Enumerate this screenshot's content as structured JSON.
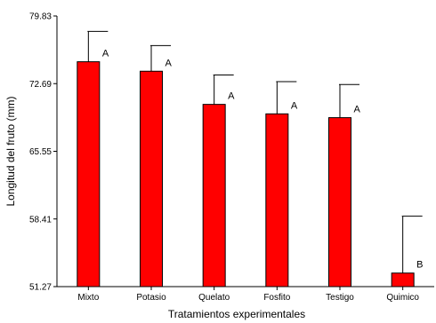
{
  "chart_data": {
    "type": "bar",
    "xlabel": "Tratamientos experimentales",
    "ylabel": "Longitud del fruto (mm)",
    "ylim": [
      51.27,
      79.83
    ],
    "yticks": [
      51.27,
      58.41,
      65.55,
      72.69,
      79.83
    ],
    "ytick_labels": [
      "51.27",
      "58.41",
      "65.55",
      "72.69",
      "79.83"
    ],
    "grid": false,
    "legend": "none",
    "bar_color": "#FF0000",
    "categories": [
      "Mixto",
      "Potasio",
      "Quelato",
      "Fosfito",
      "Testigo",
      "Quimico"
    ],
    "values": [
      75.0,
      74.0,
      70.5,
      69.5,
      69.1,
      52.7
    ],
    "error_upper": [
      78.2,
      76.7,
      73.6,
      72.9,
      72.6,
      58.7
    ],
    "significance": [
      "A",
      "A",
      "A",
      "A",
      "A",
      "B"
    ]
  }
}
